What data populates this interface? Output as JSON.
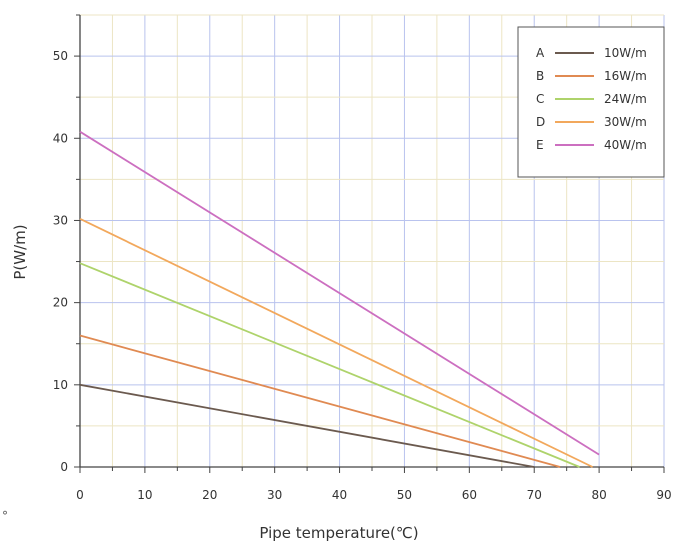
{
  "chart_data": {
    "type": "line",
    "title": "",
    "xlabel": "Pipe temperature(℃)",
    "ylabel": "P(W/m)",
    "xlim": [
      0,
      90
    ],
    "ylim": [
      0,
      55
    ],
    "x_ticks": [
      0,
      10,
      20,
      30,
      40,
      50,
      60,
      70,
      80,
      90
    ],
    "y_ticks": [
      0,
      10,
      20,
      30,
      40,
      50
    ],
    "grid": true,
    "legend_position": "top-right",
    "series": [
      {
        "key": "A",
        "name": "10W/m",
        "color": "#6b5a4f",
        "x": [
          0,
          70
        ],
        "y": [
          10,
          0
        ]
      },
      {
        "key": "B",
        "name": "16W/m",
        "color": "#e08a52",
        "x": [
          0,
          74
        ],
        "y": [
          16,
          0
        ]
      },
      {
        "key": "C",
        "name": "24W/m",
        "color": "#aed36b",
        "x": [
          0,
          77
        ],
        "y": [
          24.8,
          0
        ]
      },
      {
        "key": "D",
        "name": "30W/m",
        "color": "#f2a85c",
        "x": [
          0,
          79
        ],
        "y": [
          30.2,
          0
        ]
      },
      {
        "key": "E",
        "name": "40W/m",
        "color": "#cc6fc0",
        "x": [
          0,
          80
        ],
        "y": [
          40.8,
          1.5
        ]
      }
    ]
  },
  "stray_mark": "°"
}
